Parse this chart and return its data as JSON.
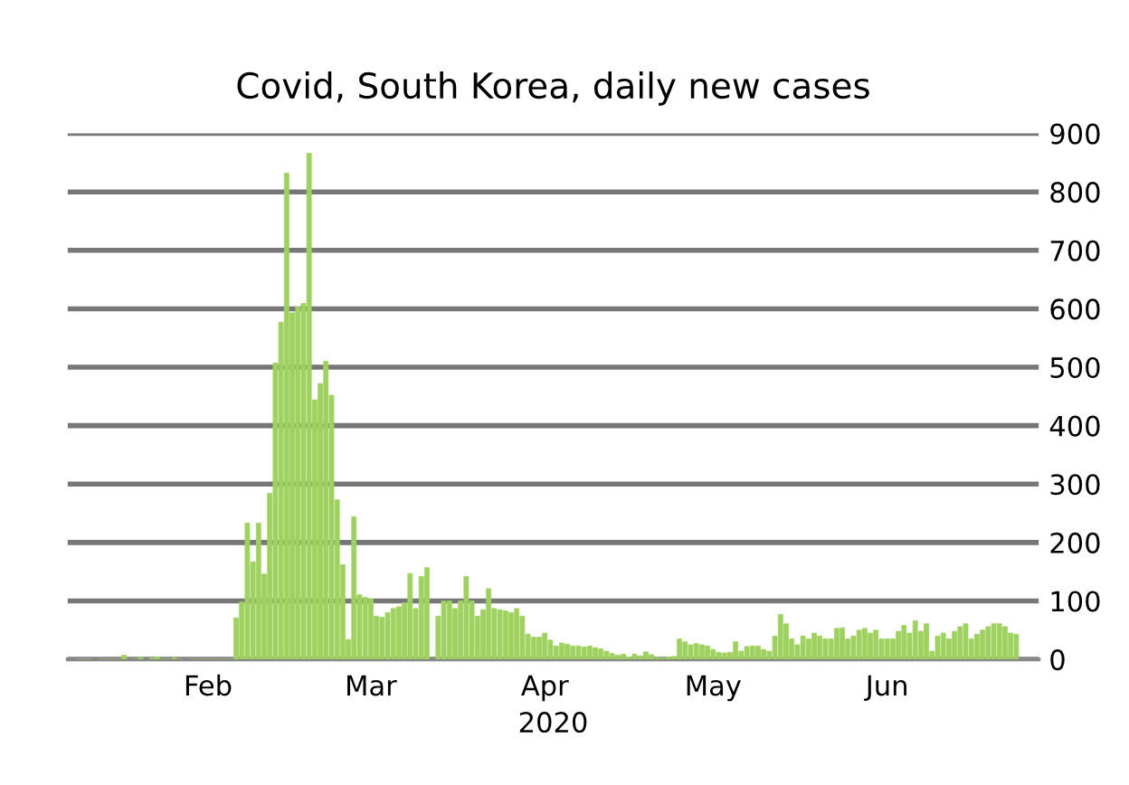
{
  "chart_data": {
    "type": "bar",
    "title": "Covid, South Korea, daily new cases",
    "xlabel": "2020",
    "x": [
      "2020-01-23",
      "2020-01-24",
      "2020-01-25",
      "2020-01-26",
      "2020-01-27",
      "2020-01-28",
      "2020-01-29",
      "2020-01-30",
      "2020-01-31",
      "2020-02-01",
      "2020-02-02",
      "2020-02-03",
      "2020-02-04",
      "2020-02-05",
      "2020-02-06",
      "2020-02-07",
      "2020-02-08",
      "2020-02-09",
      "2020-02-10",
      "2020-02-11",
      "2020-02-12",
      "2020-02-13",
      "2020-02-14",
      "2020-02-15",
      "2020-02-16",
      "2020-02-17",
      "2020-02-18",
      "2020-02-19",
      "2020-02-20",
      "2020-02-21",
      "2020-02-22",
      "2020-02-23",
      "2020-02-24",
      "2020-02-25",
      "2020-02-26",
      "2020-02-27",
      "2020-02-28",
      "2020-02-29",
      "2020-03-01",
      "2020-03-02",
      "2020-03-03",
      "2020-03-04",
      "2020-03-05",
      "2020-03-06",
      "2020-03-07",
      "2020-03-08",
      "2020-03-09",
      "2020-03-10",
      "2020-03-11",
      "2020-03-12",
      "2020-03-13",
      "2020-03-14",
      "2020-03-15",
      "2020-03-16",
      "2020-03-17",
      "2020-03-18",
      "2020-03-19",
      "2020-03-20",
      "2020-03-21",
      "2020-03-22",
      "2020-03-23",
      "2020-03-24",
      "2020-03-25",
      "2020-03-26",
      "2020-03-27",
      "2020-03-28",
      "2020-03-29",
      "2020-03-30",
      "2020-03-31",
      "2020-04-01",
      "2020-04-02",
      "2020-04-03",
      "2020-04-04",
      "2020-04-05",
      "2020-04-06",
      "2020-04-07",
      "2020-04-08",
      "2020-04-09",
      "2020-04-10",
      "2020-04-11",
      "2020-04-12",
      "2020-04-13",
      "2020-04-14",
      "2020-04-15",
      "2020-04-16",
      "2020-04-17",
      "2020-04-18",
      "2020-04-19",
      "2020-04-20",
      "2020-04-21",
      "2020-04-22",
      "2020-04-23",
      "2020-04-24",
      "2020-04-25",
      "2020-04-26",
      "2020-04-27",
      "2020-04-28",
      "2020-04-29",
      "2020-04-30",
      "2020-05-01",
      "2020-05-02",
      "2020-05-03",
      "2020-05-04",
      "2020-05-05",
      "2020-05-06",
      "2020-05-07",
      "2020-05-08",
      "2020-05-09",
      "2020-05-10",
      "2020-05-11",
      "2020-05-12",
      "2020-05-13",
      "2020-05-14",
      "2020-05-15",
      "2020-05-16",
      "2020-05-17",
      "2020-05-18",
      "2020-05-19",
      "2020-05-20",
      "2020-05-21",
      "2020-05-22",
      "2020-05-23",
      "2020-05-24",
      "2020-05-25",
      "2020-05-26",
      "2020-05-27",
      "2020-05-28",
      "2020-05-29",
      "2020-05-30",
      "2020-05-31",
      "2020-06-01",
      "2020-06-02",
      "2020-06-03",
      "2020-06-04",
      "2020-06-05",
      "2020-06-06",
      "2020-06-07",
      "2020-06-08",
      "2020-06-09",
      "2020-06-10",
      "2020-06-11",
      "2020-06-12",
      "2020-06-13",
      "2020-06-14",
      "2020-06-15",
      "2020-06-16",
      "2020-06-17",
      "2020-06-18",
      "2020-06-19",
      "2020-06-20",
      "2020-06-21",
      "2020-06-22",
      "2020-06-23",
      "2020-06-24",
      "2020-06-25",
      "2020-06-26",
      "2020-06-27",
      "2020-06-28",
      "2020-06-29",
      "2020-06-30",
      "2020-07-01",
      "2020-07-02",
      "2020-07-03",
      "2020-07-04",
      "2020-07-05",
      "2020-07-06",
      "2020-07-07",
      "2020-07-08"
    ],
    "values": [
      0,
      0,
      0,
      null,
      0,
      0,
      0,
      0,
      7,
      null,
      0,
      3,
      null,
      2,
      4,
      0,
      0,
      3,
      0,
      null,
      0,
      0,
      0,
      0,
      0,
      0,
      0,
      0,
      71,
      98,
      233,
      167,
      233,
      146,
      284,
      507,
      577,
      832,
      593,
      603,
      609,
      866,
      444,
      472,
      510,
      452,
      273,
      162,
      34,
      244,
      111,
      106,
      103,
      74,
      72,
      80,
      87,
      90,
      97,
      147,
      87,
      142,
      157,
      null,
      74,
      100,
      100,
      87,
      100,
      142,
      100,
      74,
      85,
      121,
      87,
      85,
      83,
      80,
      87,
      74,
      43,
      38,
      38,
      45,
      33,
      23,
      28,
      26,
      23,
      23,
      21,
      23,
      20,
      18,
      14,
      10,
      7,
      9,
      4,
      9,
      6,
      13,
      8,
      3,
      2,
      4,
      5,
      35,
      30,
      25,
      27,
      25,
      23,
      17,
      12,
      11,
      12,
      30,
      14,
      22,
      23,
      23,
      17,
      14,
      40,
      77,
      61,
      35,
      25,
      40,
      35,
      45,
      40,
      35,
      35,
      53,
      54,
      35,
      40,
      50,
      53,
      45,
      50,
      35,
      35,
      35,
      48,
      58,
      45,
      66,
      48,
      61,
      14,
      40,
      45,
      35,
      48,
      56,
      61,
      35,
      43,
      50,
      56,
      61,
      61,
      56,
      45,
      43
    ],
    "color": "#9fd160",
    "xlim": [
      "2020-01-21",
      "2020-07-12"
    ],
    "xticks": [
      {
        "value": "2020-02-15",
        "label": "Feb"
      },
      {
        "value": "2020-03-15",
        "label": "Mar"
      },
      {
        "value": "2020-04-15",
        "label": "Apr"
      },
      {
        "value": "2020-05-15",
        "label": "May"
      },
      {
        "value": "2020-06-15",
        "label": "Jun"
      }
    ],
    "ylim": [
      0,
      900
    ],
    "yticks": [
      0,
      100,
      200,
      300,
      400,
      500,
      600,
      700,
      800,
      900
    ],
    "grid": "y",
    "legend": false
  }
}
